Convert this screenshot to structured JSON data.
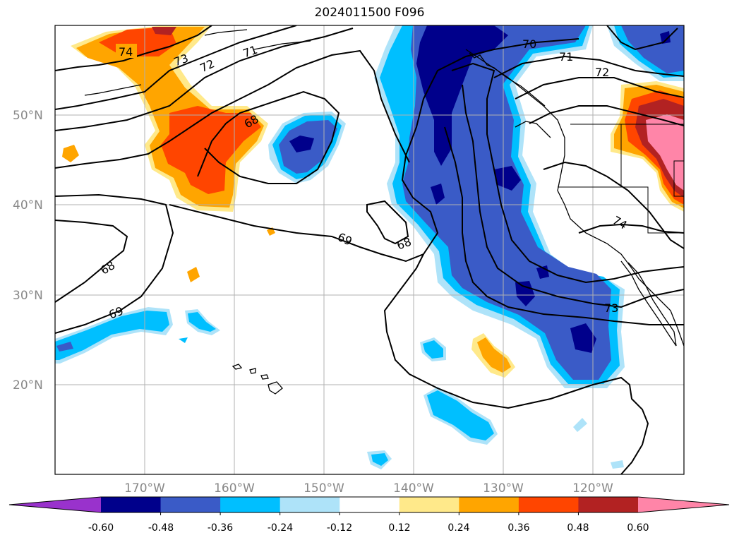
{
  "title": "2024011500 F096",
  "map": {
    "lat_labels": [
      "50°N",
      "40°N",
      "30°N",
      "20°N"
    ],
    "lon_labels": [
      "170°W",
      "160°W",
      "150°W",
      "140°W",
      "130°W",
      "120°W"
    ],
    "contour_labels": [
      "74",
      "73",
      "72",
      "71",
      "70",
      "71",
      "72",
      "68",
      "69",
      "68",
      "68",
      "69",
      "73",
      "74"
    ]
  },
  "colorbar": {
    "colors": [
      "#9932cc",
      "#00008b",
      "#3a5bc7",
      "#00bfff",
      "#aee3f9",
      "#ffffff",
      "#ffe98a",
      "#ffa500",
      "#ff4500",
      "#b22222",
      "#ff85a8"
    ],
    "labels": [
      "-0.60",
      "-0.48",
      "-0.36",
      "-0.24",
      "-0.12",
      "0.12",
      "0.24",
      "0.36",
      "0.48",
      "0.60"
    ]
  }
}
